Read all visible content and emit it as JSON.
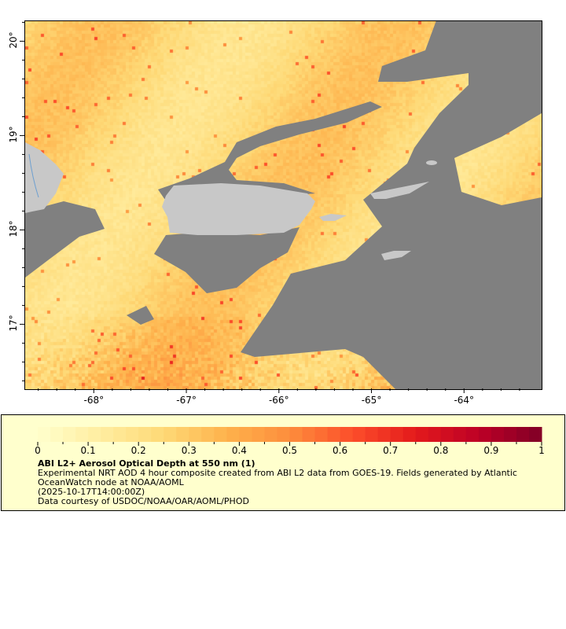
{
  "map": {
    "lon_ticks": [
      "-68°",
      "-67°",
      "-66°",
      "-65°",
      "-64°"
    ],
    "lon_values": [
      -68,
      -67,
      -66,
      -65,
      -64
    ],
    "lat_ticks": [
      "20°",
      "19°",
      "18°",
      "17°"
    ],
    "lat_values": [
      20,
      19,
      18,
      17
    ],
    "lon_range": [
      -68.75,
      -63.17
    ],
    "lat_range": [
      16.32,
      20.22
    ],
    "colors": {
      "no_data": "#808080",
      "land": "#c8c8c8",
      "river": "#6fa0d0"
    }
  },
  "legend": {
    "colorbar_ticks": [
      "0",
      "0.1",
      "0.2",
      "0.3",
      "0.4",
      "0.5",
      "0.6",
      "0.7",
      "0.8",
      "0.9",
      "1"
    ],
    "colorbar_range": [
      0,
      1
    ],
    "colormap_stops": [
      "#ffffcc",
      "#ffeda0",
      "#fed976",
      "#feb24c",
      "#fd8d3c",
      "#fc4e2a",
      "#e31a1c",
      "#bd0026",
      "#800026"
    ],
    "title": "ABI L2+ Aerosol Optical Depth at 550 nm (1)",
    "description_line1": "Experimental NRT AOD 4 hour composite created from ABI L2 data from GOES-19. Fields generated by Atlantic",
    "description_line2": "OceanWatch node at NOAA/AOML",
    "time": "(2025-10-17T14:00:00Z)",
    "credit": "Data courtesy of USDOC/NOAA/OAR/AOML/PHOD"
  }
}
